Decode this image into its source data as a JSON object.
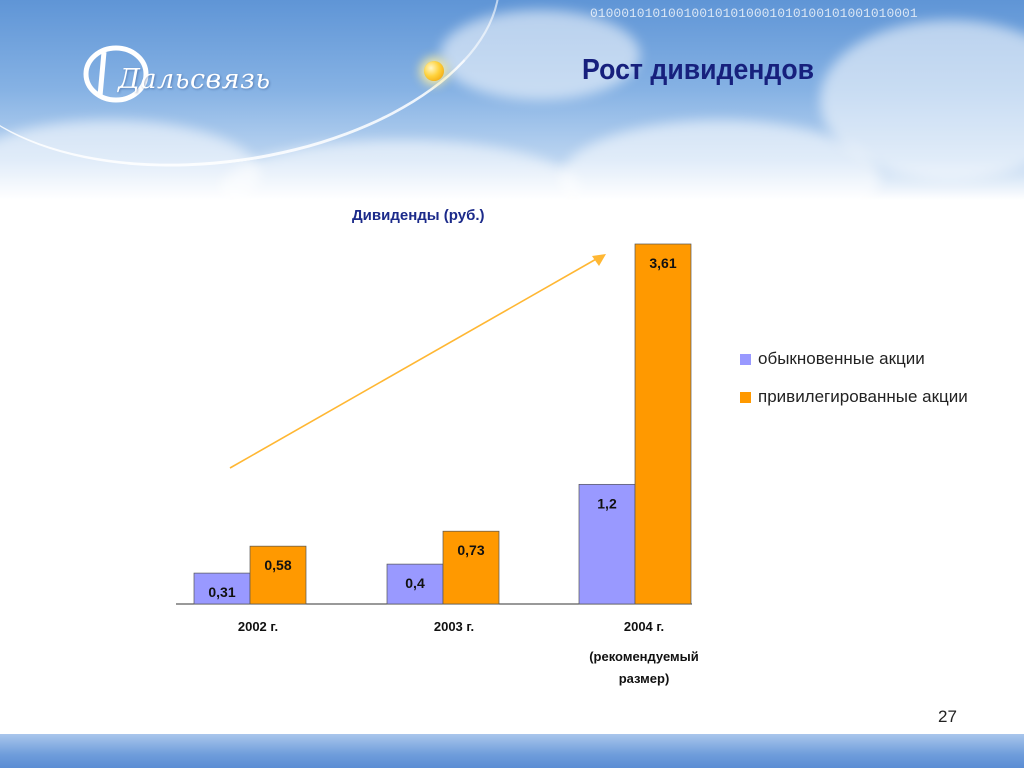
{
  "slide": {
    "title": "Рост дивидендов",
    "logo_text": "Дальсвязь",
    "binary_strip": "010001010100100101010001010100101001010001",
    "page_number": "27"
  },
  "colors": {
    "ordinary": "#9999ff",
    "preferred": "#ff9900",
    "trend_arrow": "#ffb733",
    "title": "#17207d"
  },
  "chart_data": {
    "type": "bar",
    "title": "Дивиденды (руб.)",
    "categories": [
      "2002 г.",
      "2003 г.",
      "2004 г."
    ],
    "category_notes": [
      "",
      "",
      "(рекомендуемый размер)"
    ],
    "series": [
      {
        "name": "обыкновенные акции",
        "values": [
          0.31,
          0.4,
          1.2
        ],
        "labels": [
          "0,31",
          "0,4",
          "1,2"
        ]
      },
      {
        "name": "привилегированные акции",
        "values": [
          0.58,
          0.73,
          3.61
        ],
        "labels": [
          "0,58",
          "0,73",
          "3,61"
        ]
      }
    ],
    "ylim": [
      0,
      3.61
    ],
    "grid": false,
    "legend_position": "right",
    "trend_arrow": true
  }
}
